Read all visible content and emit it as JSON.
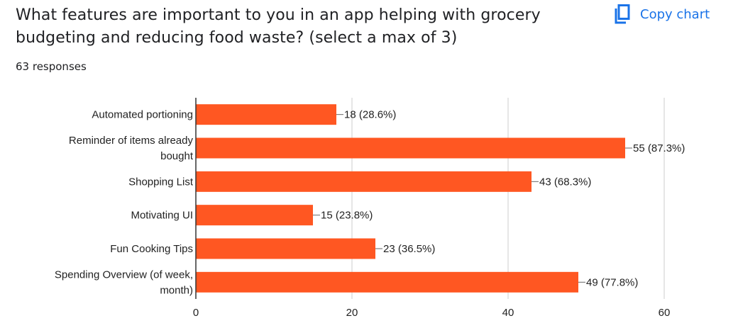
{
  "header": {
    "title": "What features are important to you in an app helping with grocery budgeting and reducing food waste? (select a max of 3)",
    "responses": "63 responses",
    "copy_label": "Copy chart",
    "copy_icon": "copy-icon"
  },
  "colors": {
    "bar": "#ff5722",
    "accent": "#1a73e8",
    "grid": "#cccccc",
    "axis": "#333333"
  },
  "chart_data": {
    "type": "bar",
    "orientation": "horizontal",
    "categories": [
      [
        "Automated portioning"
      ],
      [
        "Reminder of items already",
        "bought"
      ],
      [
        "Shopping List"
      ],
      [
        "Motivating UI"
      ],
      [
        "Fun Cooking Tips"
      ],
      [
        "Spending Overview (of week,",
        "month)"
      ]
    ],
    "values": [
      18,
      55,
      43,
      15,
      23,
      49
    ],
    "data_labels": [
      "18 (28.6%)",
      "55 (87.3%)",
      "43 (68.3%)",
      "15 (23.8%)",
      "23 (36.5%)",
      "49 (77.8%)"
    ],
    "xlim": [
      0,
      60
    ],
    "xticks": [
      0,
      20,
      40,
      60
    ],
    "grid": true,
    "legend": "none"
  }
}
